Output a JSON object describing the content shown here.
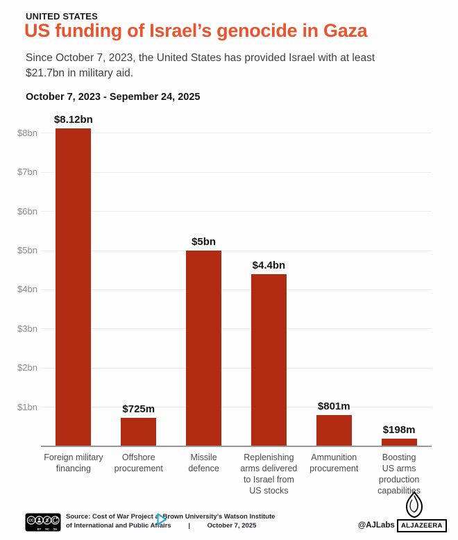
{
  "header": {
    "kicker": "UNITED STATES",
    "title": "US funding of Israel’s genocide in Gaza",
    "subtitle_lines": [
      "Since October 7, 2023, the United States has provided Israel with at least",
      "$21.7bn in military aid."
    ]
  },
  "chart_data": {
    "type": "bar",
    "title": "October 7, 2023 - Sepember 24, 2025",
    "categories": [
      "Foreign military financing",
      "Offshore procurement",
      "Missile defence",
      "Replenishing arms delivered to Israel from US stocks",
      "Ammunition procurement",
      "Boosting US arms production capabilities"
    ],
    "category_lines": [
      [
        "Foreign military",
        "financing"
      ],
      [
        "Offshore",
        "procurement"
      ],
      [
        "Missile",
        "defence"
      ],
      [
        "Replenishing",
        "arms delivered",
        "to Israel from",
        "US stocks"
      ],
      [
        "Ammunition",
        "procurement"
      ],
      [
        "Boosting",
        "US arms",
        "production",
        "capabilities"
      ]
    ],
    "values": [
      8.12,
      0.725,
      5,
      4.4,
      0.801,
      0.198
    ],
    "value_labels": [
      "$8.12bn",
      "$725m",
      "$5bn",
      "$4.4bn",
      "$801m",
      "$198m"
    ],
    "unit": "USD billions",
    "xlabel": "",
    "ylabel": "",
    "ytick_values": [
      1,
      2,
      3,
      4,
      5,
      6,
      7,
      8
    ],
    "ytick_labels": [
      "$1bn",
      "$2bn",
      "$3bn",
      "$4bn",
      "$5bn",
      "$6bn",
      "$7bn",
      "$8bn"
    ],
    "ylim": [
      0,
      8.5
    ],
    "grid": true,
    "legend": false,
    "bar_color": "#b12b12"
  },
  "footer": {
    "license_icon": "cc-by-nc-sa-badge",
    "license_sublabels": [
      "BY",
      "NC",
      "SA"
    ],
    "source_line1": "Source: Cost of War Project at Brown University’s Watson Institute",
    "source_line2": "of International and Public Affairs",
    "separator": "|",
    "date": "October 7, 2025",
    "credit": "@AJLabs",
    "logo_text": "ALJAZEERA"
  },
  "icons": {
    "license": "cc-by-nc-sa-badge",
    "cursor": "play-cursor-overlay",
    "logo": "aljazeera-flame"
  },
  "colors": {
    "background": "#fdfdfd",
    "title_accent": "#e8542e",
    "bar": "#b12b12",
    "gridline": "#ececec",
    "axis": "#979797",
    "ytick_text": "#8d8d8d",
    "xtick_text": "#4b4b50",
    "value_text": "#141414"
  }
}
